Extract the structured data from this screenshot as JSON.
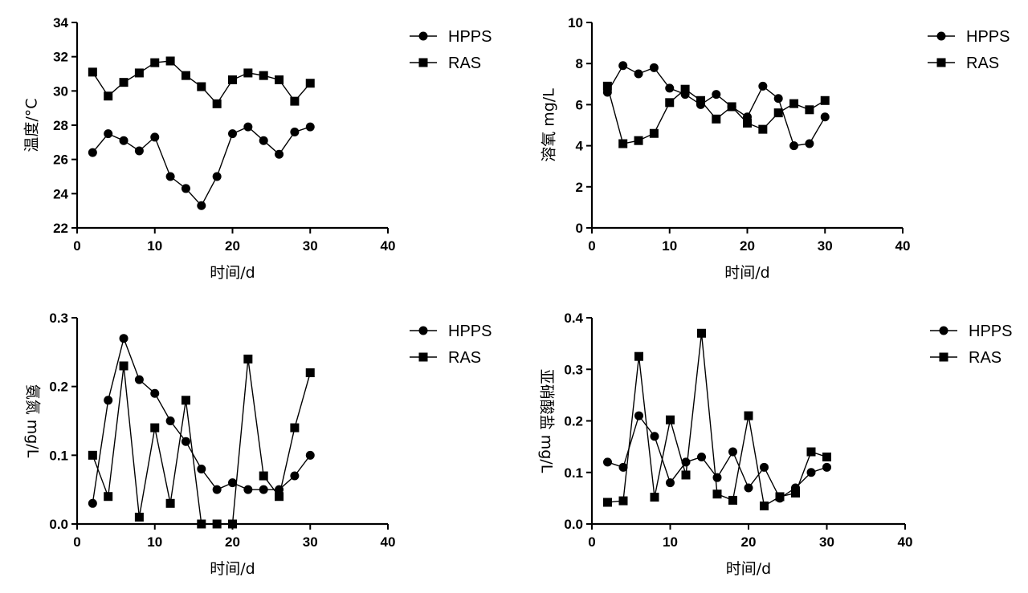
{
  "chart_data": [
    {
      "type": "line",
      "xlabel": "时间/d",
      "ylabel": "温度/°C",
      "xlim": [
        0,
        40
      ],
      "ylim": [
        22,
        34
      ],
      "xticks": [
        "0",
        "10",
        "20",
        "30",
        "40"
      ],
      "yticks": [
        "22",
        "24",
        "26",
        "28",
        "30",
        "32",
        "34"
      ],
      "x": [
        2,
        4,
        6,
        8,
        10,
        12,
        14,
        16,
        18,
        20,
        22,
        24,
        26,
        28,
        30
      ],
      "legend_position": "top-right",
      "series": [
        {
          "name": "HPPS",
          "marker": "circle",
          "values": [
            26.4,
            27.5,
            27.1,
            26.5,
            27.3,
            25.0,
            24.3,
            23.3,
            25.0,
            27.5,
            27.9,
            27.1,
            26.3,
            27.6,
            27.9
          ]
        },
        {
          "name": "RAS",
          "marker": "square",
          "values": [
            31.1,
            29.7,
            30.5,
            31.05,
            31.65,
            31.75,
            30.9,
            30.25,
            29.25,
            30.65,
            31.05,
            30.9,
            30.65,
            29.4,
            30.45
          ]
        }
      ]
    },
    {
      "type": "line",
      "xlabel": "时间/d",
      "ylabel": "溶氧 mg/L",
      "xlim": [
        0,
        40
      ],
      "ylim": [
        0,
        10
      ],
      "xticks": [
        "0",
        "10",
        "20",
        "30",
        "40"
      ],
      "yticks": [
        "0",
        "2",
        "4",
        "6",
        "8",
        "10"
      ],
      "x": [
        2,
        4,
        6,
        8,
        10,
        12,
        14,
        16,
        18,
        20,
        22,
        24,
        26,
        28,
        30
      ],
      "legend_position": "top-right",
      "series": [
        {
          "name": "HPPS",
          "marker": "circle",
          "values": [
            6.6,
            7.9,
            7.5,
            7.8,
            6.8,
            6.5,
            6.0,
            6.5,
            5.9,
            5.4,
            6.9,
            6.3,
            4.0,
            4.1,
            5.4
          ]
        },
        {
          "name": "RAS",
          "marker": "square",
          "values": [
            6.9,
            4.1,
            4.25,
            4.6,
            6.1,
            6.75,
            6.2,
            5.3,
            5.9,
            5.1,
            4.8,
            5.6,
            6.05,
            5.75,
            6.2
          ]
        }
      ]
    },
    {
      "type": "line",
      "xlabel": "时间/d",
      "ylabel": "氨氮 mg/L",
      "xlim": [
        0,
        40
      ],
      "ylim": [
        0,
        0.3
      ],
      "xticks": [
        "0",
        "10",
        "20",
        "30",
        "40"
      ],
      "yticks": [
        "0.0",
        "0.1",
        "0.2",
        "0.3"
      ],
      "x": [
        2,
        4,
        6,
        8,
        10,
        12,
        14,
        16,
        18,
        20,
        22,
        24,
        26,
        28,
        30
      ],
      "legend_position": "top-right",
      "series": [
        {
          "name": "HPPS",
          "marker": "circle",
          "values": [
            0.03,
            0.18,
            0.27,
            0.21,
            0.19,
            0.15,
            0.12,
            0.08,
            0.05,
            0.06,
            0.05,
            0.05,
            0.05,
            0.07,
            0.1
          ]
        },
        {
          "name": "RAS",
          "marker": "square",
          "values": [
            0.1,
            0.04,
            0.23,
            0.01,
            0.14,
            0.03,
            0.18,
            0.0,
            0.0,
            0.0,
            0.24,
            0.07,
            0.04,
            0.14,
            0.22
          ]
        }
      ]
    },
    {
      "type": "line",
      "xlabel": "时间/d",
      "ylabel": "亚硝酸盐 mg/L",
      "xlim": [
        0,
        40
      ],
      "ylim": [
        0,
        0.4
      ],
      "xticks": [
        "0",
        "10",
        "20",
        "30",
        "40"
      ],
      "yticks": [
        "0.0",
        "0.1",
        "0.2",
        "0.3",
        "0.4"
      ],
      "x": [
        2,
        4,
        6,
        8,
        10,
        12,
        14,
        16,
        18,
        20,
        22,
        24,
        26,
        28,
        30
      ],
      "legend_position": "top-right",
      "series": [
        {
          "name": "HPPS",
          "marker": "circle",
          "values": [
            0.12,
            0.11,
            0.21,
            0.17,
            0.08,
            0.12,
            0.13,
            0.09,
            0.14,
            0.07,
            0.11,
            0.05,
            0.07,
            0.1,
            0.11
          ]
        },
        {
          "name": "RAS",
          "marker": "square",
          "values": [
            0.042,
            0.045,
            0.325,
            0.052,
            0.202,
            0.095,
            0.37,
            0.058,
            0.046,
            0.21,
            0.035,
            0.053,
            0.06,
            0.14,
            0.13
          ]
        }
      ]
    }
  ]
}
